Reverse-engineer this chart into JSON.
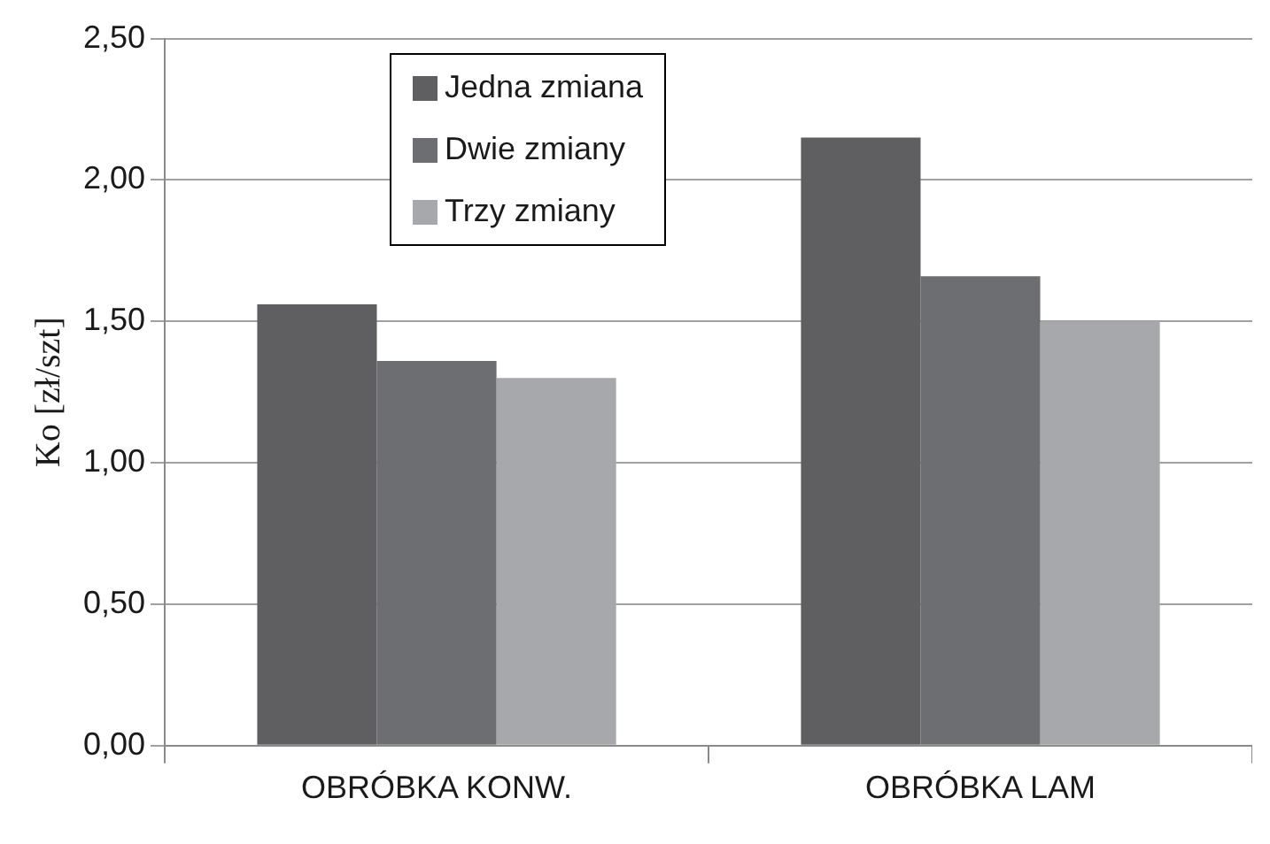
{
  "chart_data": {
    "type": "bar",
    "ylabel": "Ko [zł/szt]",
    "categories": [
      "OBRÓBKA KONW.",
      "OBRÓBKA LAM"
    ],
    "series": [
      {
        "name": "Jedna zmiana",
        "color": "#5f5f61",
        "values": [
          1.56,
          2.15
        ]
      },
      {
        "name": "Dwie zmiany",
        "color": "#6d6e71",
        "values": [
          1.36,
          1.66
        ]
      },
      {
        "name": "Trzy zmiany",
        "color": "#a7a8ab",
        "values": [
          1.3,
          1.5
        ]
      }
    ],
    "ylim": [
      0,
      2.5
    ],
    "yticks": [
      {
        "value": 0,
        "label": "0,00"
      },
      {
        "value": 0.5,
        "label": "0,50"
      },
      {
        "value": 1,
        "label": "1,00"
      },
      {
        "value": 1.5,
        "label": "1,50"
      },
      {
        "value": 2,
        "label": "2,00"
      },
      {
        "value": 2.5,
        "label": "2,50"
      }
    ],
    "grid": "y",
    "legend": "top left"
  }
}
